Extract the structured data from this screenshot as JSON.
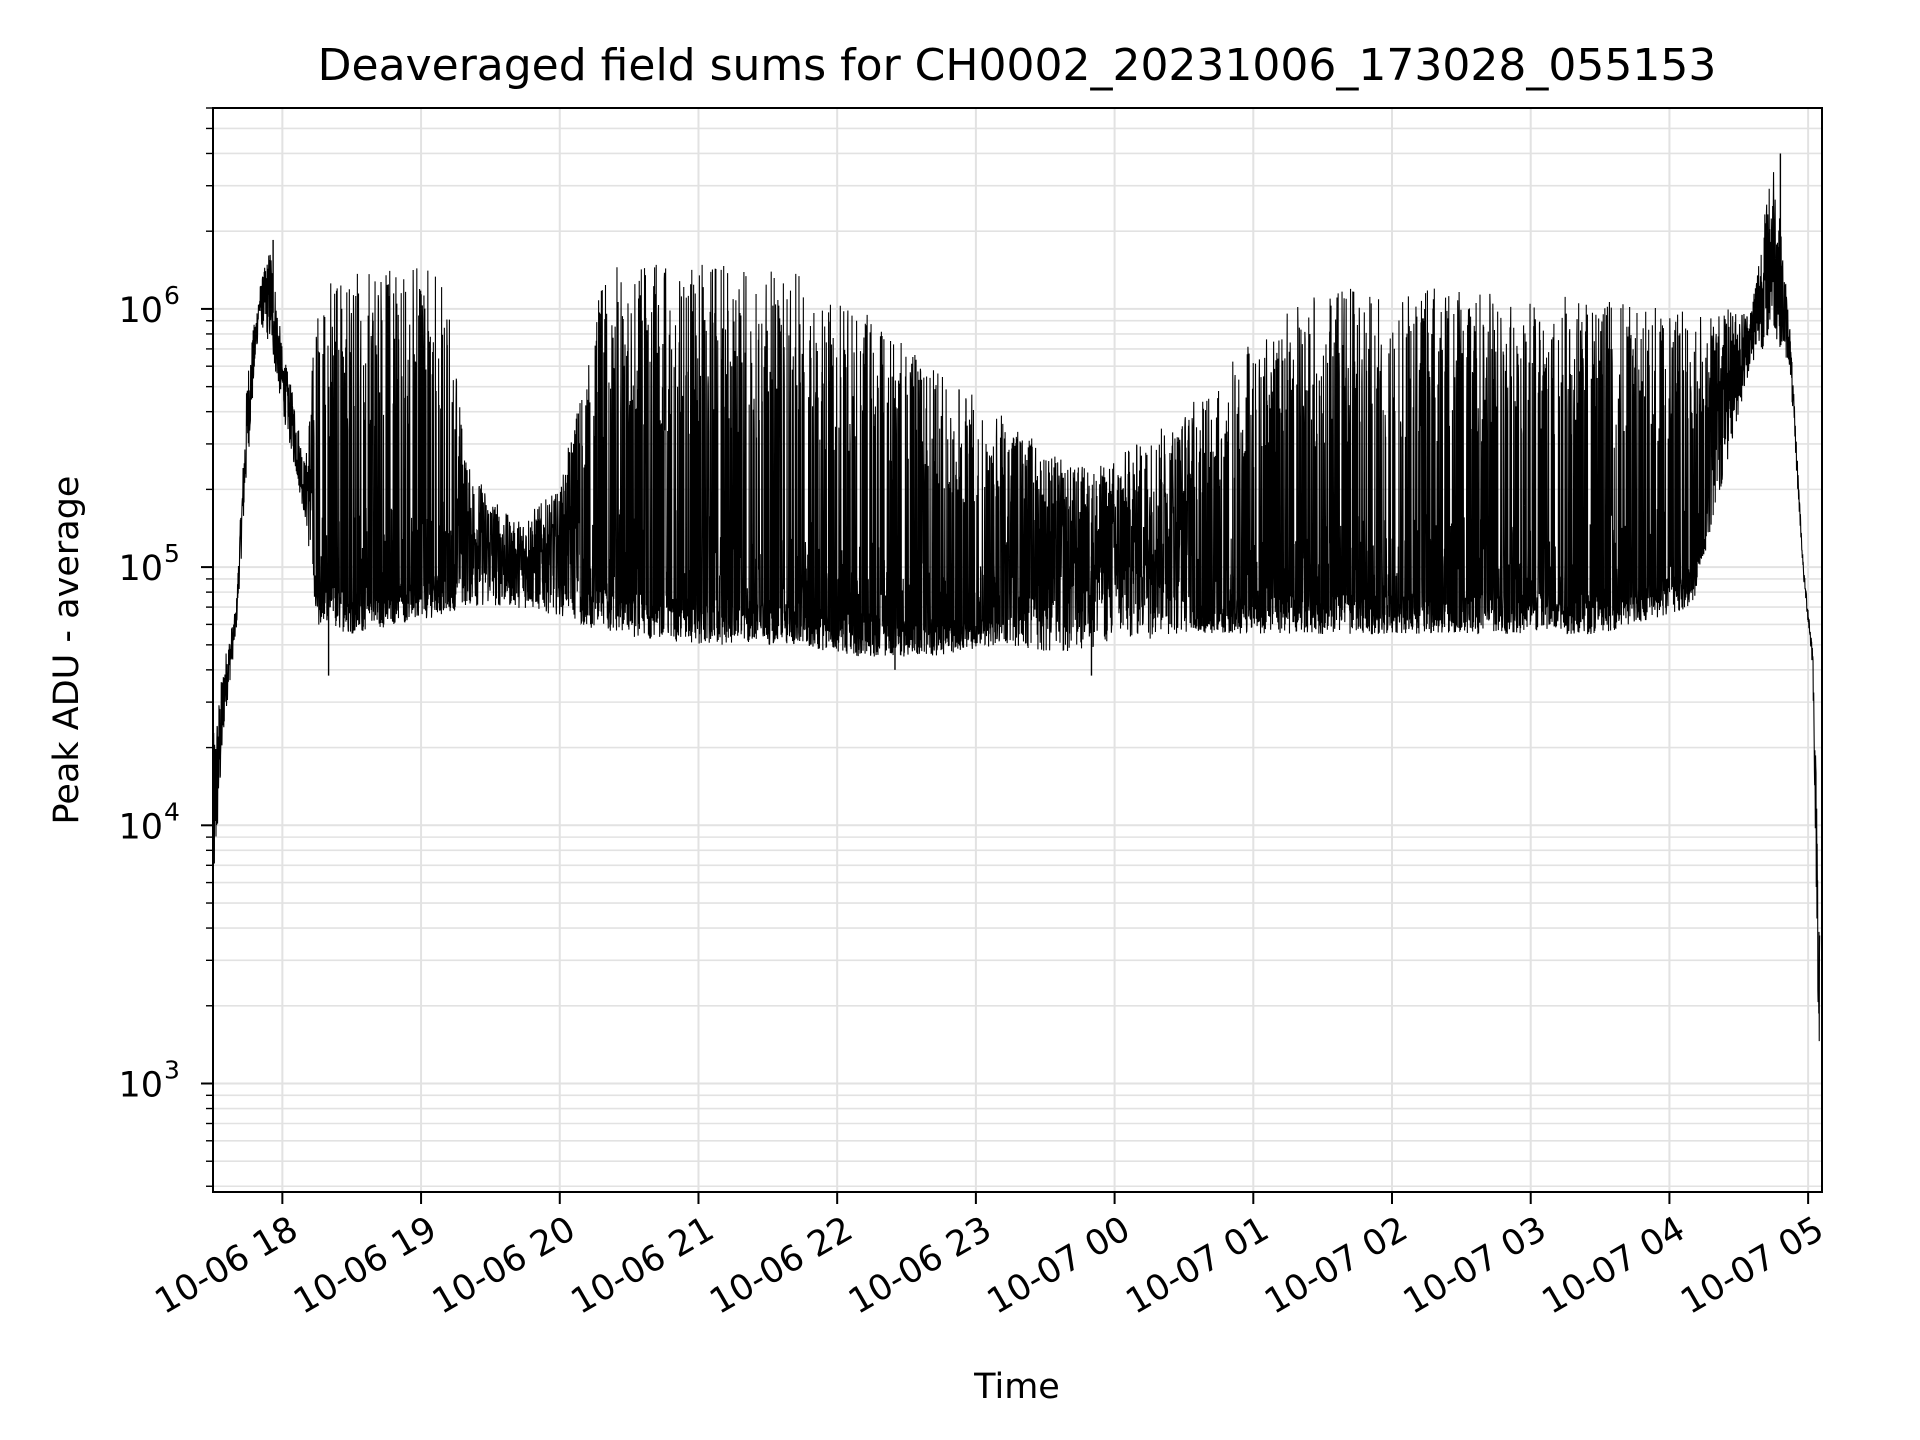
{
  "chart_data": {
    "type": "line",
    "title": "Deaveraged field sums for CH0002_20231006_173028_055153",
    "xlabel": "Time",
    "ylabel": "Peak ADU - average",
    "yscale": "log",
    "ylim": [
      380,
      6000000
    ],
    "xlim": [
      "2023-10-06 17:30",
      "2023-10-07 05:06"
    ],
    "grid": true,
    "x_tick_labels": [
      "10-06 18",
      "10-06 19",
      "10-06 20",
      "10-06 21",
      "10-06 22",
      "10-06 23",
      "10-07 00",
      "10-07 01",
      "10-07 02",
      "10-07 03",
      "10-07 04",
      "10-07 05"
    ],
    "y_ticks": [
      {
        "base": "10",
        "exp": "3",
        "value": 1000
      },
      {
        "base": "10",
        "exp": "4",
        "value": 10000
      },
      {
        "base": "10",
        "exp": "5",
        "value": 100000
      },
      {
        "base": "10",
        "exp": "6",
        "value": 1000000
      }
    ],
    "series": [
      {
        "color": "#000000",
        "envelope": [
          {
            "x": "2023-10-06 17:30",
            "low": 4500,
            "high": 22000
          },
          {
            "x": "2023-10-06 17:35",
            "low": 25000,
            "high": 45000
          },
          {
            "x": "2023-10-06 17:40",
            "low": 55000,
            "high": 70000
          },
          {
            "x": "2023-10-06 17:45",
            "low": 250000,
            "high": 600000
          },
          {
            "x": "2023-10-06 17:50",
            "low": 900000,
            "high": 1200000
          },
          {
            "x": "2023-10-06 17:55",
            "low": 700000,
            "high": 1800000
          },
          {
            "x": "2023-10-06 18:00",
            "low": 400000,
            "high": 700000
          },
          {
            "x": "2023-10-06 18:05",
            "low": 250000,
            "high": 450000
          },
          {
            "x": "2023-10-06 18:10",
            "low": 150000,
            "high": 250000
          },
          {
            "x": "2023-10-06 18:15",
            "low": 60000,
            "high": 1200000
          },
          {
            "x": "2023-10-06 18:30",
            "low": 55000,
            "high": 1400000
          },
          {
            "x": "2023-10-06 18:50",
            "low": 60000,
            "high": 1500000
          },
          {
            "x": "2023-10-06 19:10",
            "low": 65000,
            "high": 1400000
          },
          {
            "x": "2023-10-06 19:20",
            "low": 70000,
            "high": 250000
          },
          {
            "x": "2023-10-06 19:40",
            "low": 70000,
            "high": 150000
          },
          {
            "x": "2023-10-06 20:00",
            "low": 65000,
            "high": 200000
          },
          {
            "x": "2023-10-06 20:20",
            "low": 55000,
            "high": 1500000
          },
          {
            "x": "2023-10-06 21:00",
            "low": 50000,
            "high": 1500000
          },
          {
            "x": "2023-10-06 21:40",
            "low": 50000,
            "high": 1400000
          },
          {
            "x": "2023-10-06 22:10",
            "low": 45000,
            "high": 1000000
          },
          {
            "x": "2023-10-06 22:40",
            "low": 45000,
            "high": 600000
          },
          {
            "x": "2023-10-06 23:10",
            "low": 50000,
            "high": 400000
          },
          {
            "x": "2023-10-06 23:40",
            "low": 45000,
            "high": 250000
          },
          {
            "x": "2023-10-06 23:55",
            "low": 50000,
            "high": 250000
          },
          {
            "x": "2023-10-07 00:30",
            "low": 55000,
            "high": 400000
          },
          {
            "x": "2023-10-07 01:00",
            "low": 55000,
            "high": 800000
          },
          {
            "x": "2023-10-07 01:30",
            "low": 55000,
            "high": 1200000
          },
          {
            "x": "2023-10-07 02:30",
            "low": 55000,
            "high": 1200000
          },
          {
            "x": "2023-10-07 03:30",
            "low": 55000,
            "high": 1100000
          },
          {
            "x": "2023-10-07 04:10",
            "low": 70000,
            "high": 1000000
          },
          {
            "x": "2023-10-07 04:35",
            "low": 600000,
            "high": 1000000
          },
          {
            "x": "2023-10-07 04:45",
            "low": 800000,
            "high": 4000000
          },
          {
            "x": "2023-10-07 04:52",
            "low": 600000,
            "high": 900000
          },
          {
            "x": "2023-10-07 04:58",
            "low": 90000,
            "high": 100000
          },
          {
            "x": "2023-10-07 05:02",
            "low": 40000,
            "high": 50000
          },
          {
            "x": "2023-10-07 05:05",
            "low": 800,
            "high": 5000
          }
        ],
        "notable_points": [
          {
            "x": "2023-10-06 17:30",
            "y": 4300
          },
          {
            "x": "2023-10-06 17:56",
            "y": 1850000
          },
          {
            "x": "2023-10-06 18:20",
            "y": 38000
          },
          {
            "x": "2023-10-06 22:25",
            "y": 40000
          },
          {
            "x": "2023-10-06 23:50",
            "y": 38000
          },
          {
            "x": "2023-10-07 04:48",
            "y": 4000000
          },
          {
            "x": "2023-10-07 05:06",
            "y": 600
          }
        ]
      }
    ]
  }
}
